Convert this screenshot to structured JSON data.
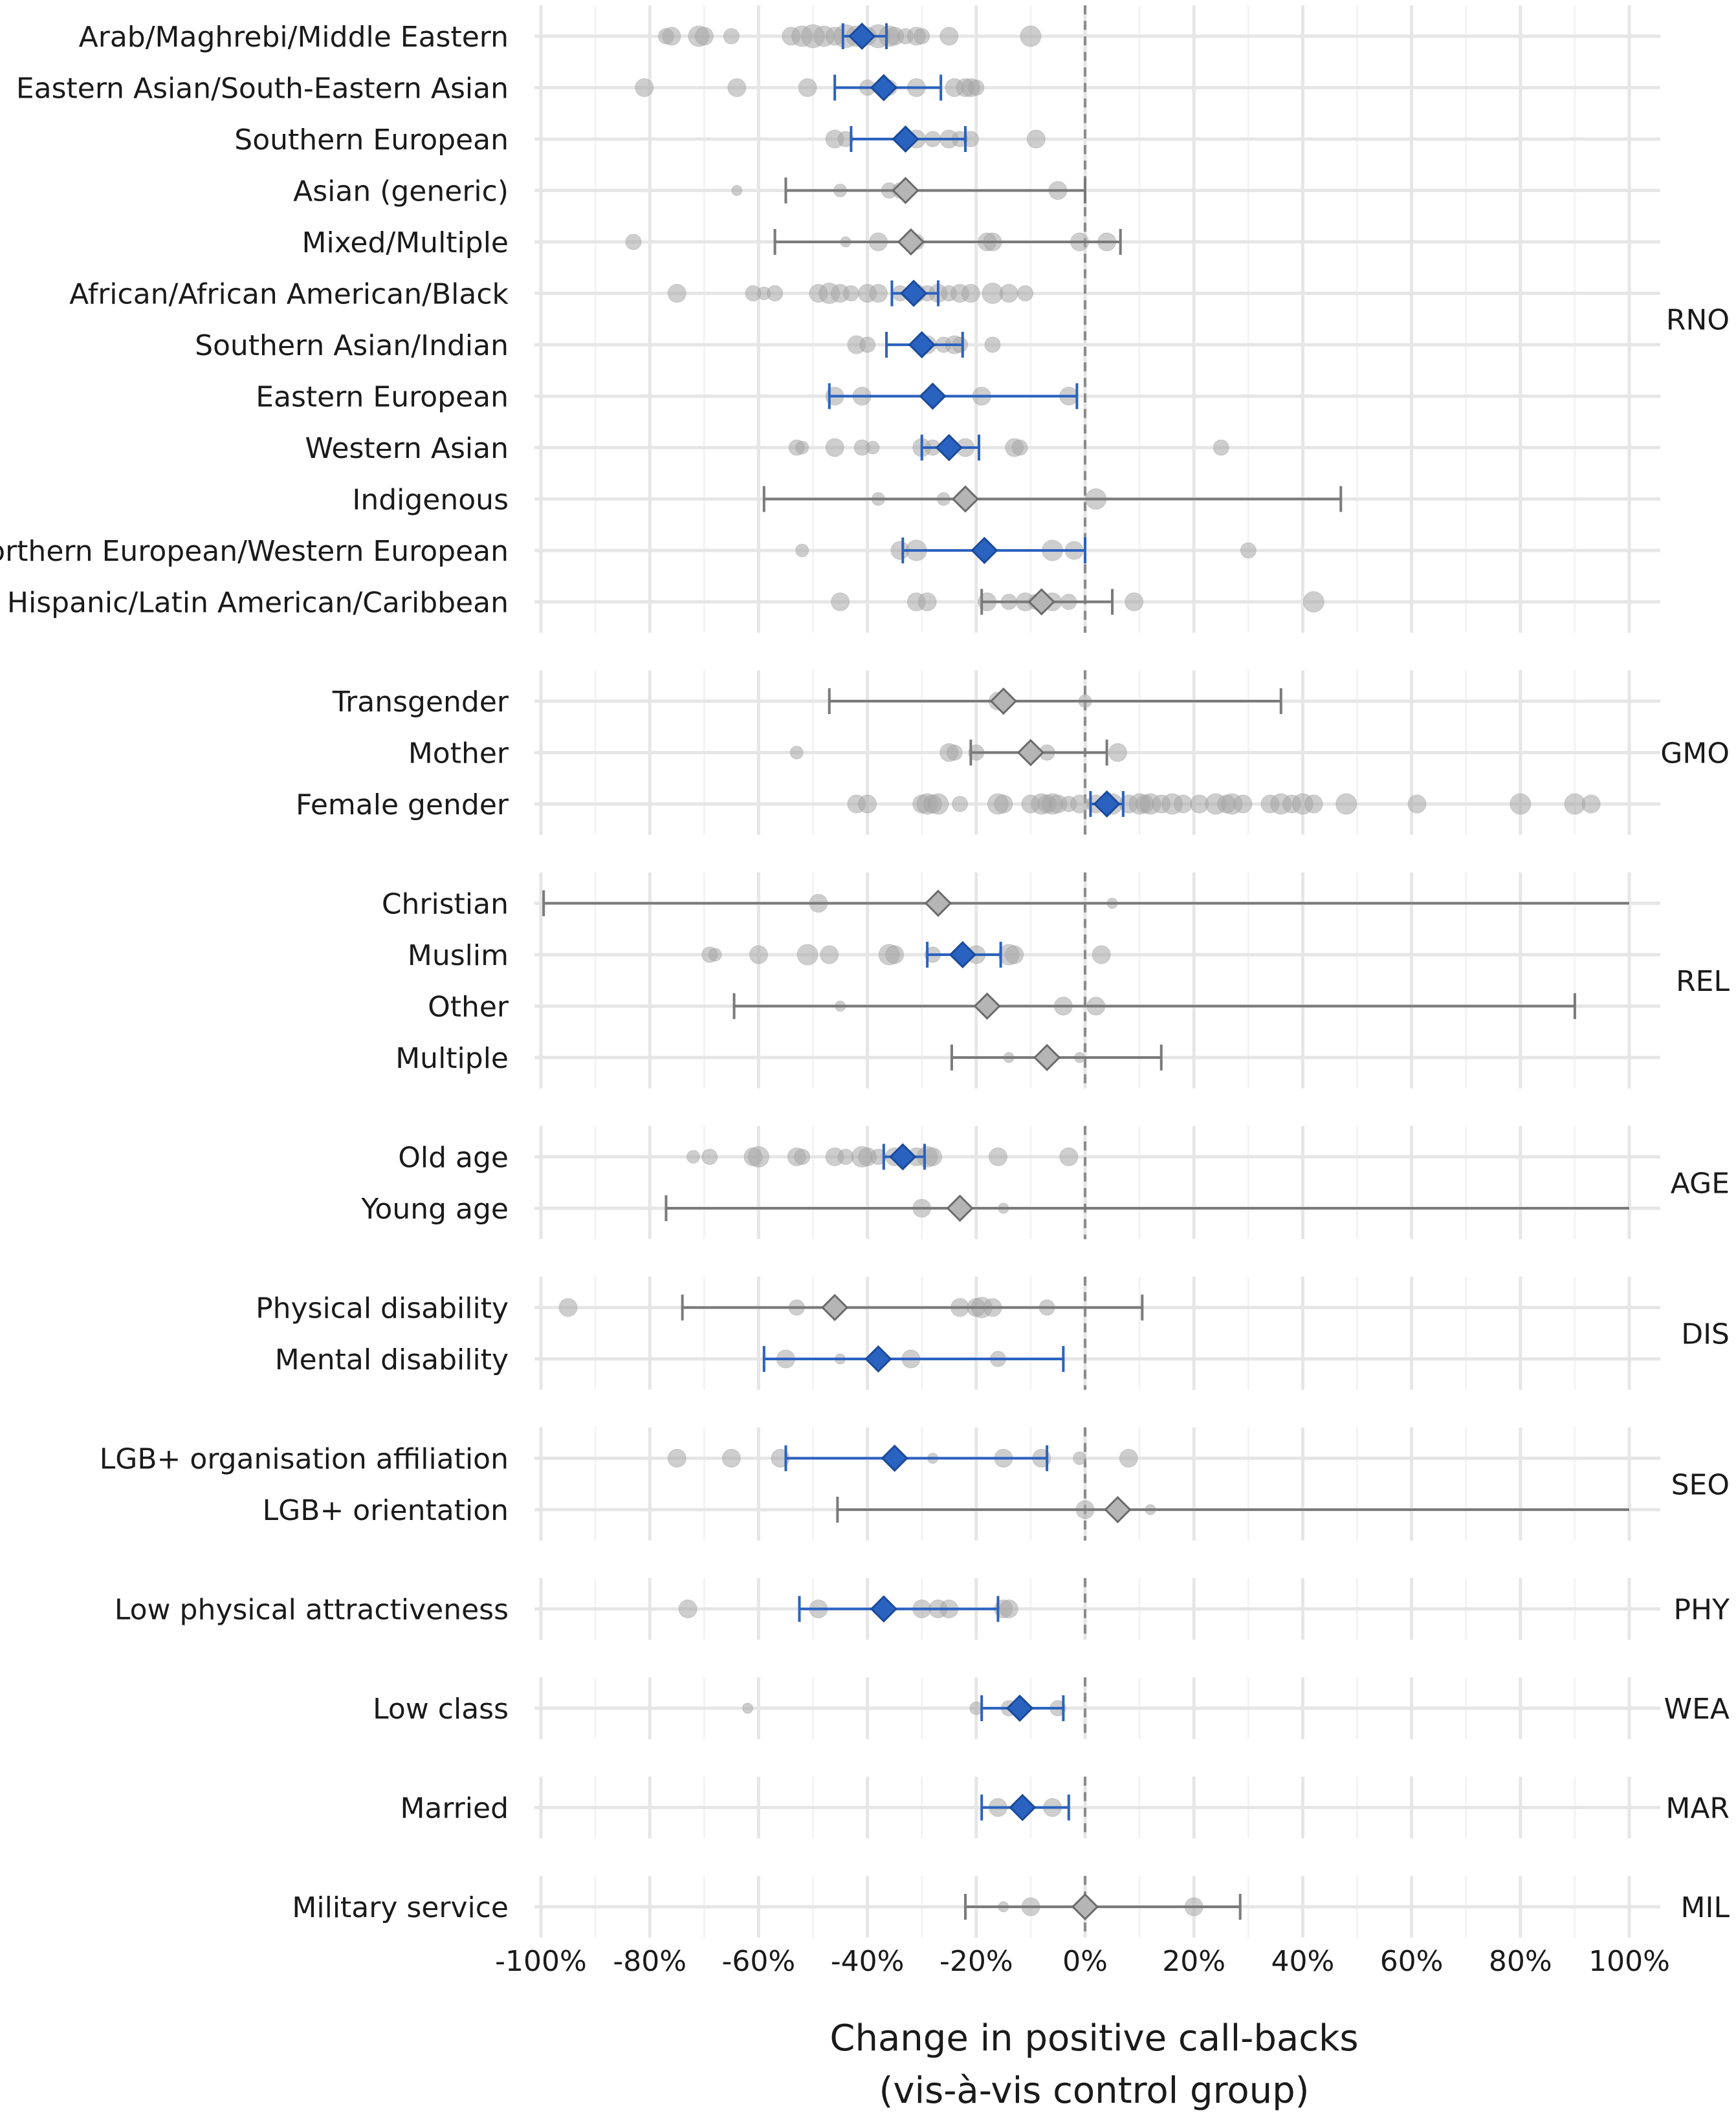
{
  "chart_data": {
    "type": "scatter",
    "title": "",
    "xlabel_lines": [
      "Change in positive call-backs",
      "(vis-à-vis control group)"
    ],
    "xlim": [
      -100,
      103
    ],
    "x_ticks": [
      -100,
      -80,
      -60,
      -40,
      -20,
      0,
      20,
      40,
      60,
      80,
      100
    ],
    "x_tick_labels": [
      "-100%",
      "-80%",
      "-60%",
      "-40%",
      "-20%",
      "0%",
      "20%",
      "40%",
      "60%",
      "80%",
      "100%"
    ],
    "reference_line": 0,
    "grid": true,
    "colors": {
      "significant": "#2a62c0",
      "not_significant": "#7a7a7a",
      "study_points": "#a6a6a6",
      "grid": "#e6e6e6",
      "reference": "#8c8c8c"
    },
    "groups": [
      {
        "label": "RNO",
        "rows": [
          {
            "label": "Arab/Maghrebi/Middle Eastern",
            "estimate": -41,
            "ci": [
              -44.5,
              -36.5
            ],
            "significant": true,
            "studies": [
              -77,
              -76,
              -71,
              -70,
              -65,
              -54,
              -52,
              -50,
              -48,
              -46,
              -44,
              -42,
              -40,
              -38,
              -36,
              -35,
              -33,
              -31,
              -30,
              -25,
              -10
            ],
            "study_sizes": [
              12,
              14,
              16,
              14,
              12,
              14,
              16,
              18,
              16,
              14,
              18,
              16,
              14,
              18,
              16,
              14,
              12,
              14,
              12,
              14,
              16
            ]
          },
          {
            "label": "Eastern Asian/South-Eastern Asian",
            "estimate": -37,
            "ci": [
              -46,
              -26.5
            ],
            "significant": true,
            "studies": [
              -81,
              -64,
              -51,
              -40,
              -36,
              -31,
              -24,
              -22,
              -21,
              -20
            ],
            "study_sizes": [
              14,
              14,
              14,
              12,
              12,
              14,
              14,
              14,
              14,
              12
            ]
          },
          {
            "label": "Southern European",
            "estimate": -33,
            "ci": [
              -43,
              -22
            ],
            "significant": true,
            "studies": [
              -46,
              -44,
              -31,
              -28,
              -25,
              -23,
              -21,
              -9
            ],
            "study_sizes": [
              14,
              12,
              14,
              12,
              14,
              12,
              12,
              14
            ]
          },
          {
            "label": "Asian (generic)",
            "estimate": -33,
            "ci": [
              -55,
              0
            ],
            "significant": false,
            "studies": [
              -64,
              -45,
              -36,
              -34,
              -5
            ],
            "study_sizes": [
              8,
              10,
              12,
              12,
              14
            ]
          },
          {
            "label": "Mixed/Multiple",
            "estimate": -32,
            "ci": [
              -57,
              6.5
            ],
            "significant": false,
            "studies": [
              -83,
              -44,
              -38,
              -31,
              -18,
              -17,
              -1,
              4
            ],
            "study_sizes": [
              12,
              8,
              14,
              12,
              14,
              14,
              14,
              14
            ]
          },
          {
            "label": "African/African American/Black",
            "estimate": -31.5,
            "ci": [
              -35.5,
              -27
            ],
            "significant": true,
            "studies": [
              -75,
              -61,
              -59,
              -57,
              -49,
              -47,
              -45,
              -43,
              -40,
              -38,
              -34,
              -31,
              -29,
              -27,
              -25,
              -23,
              -21,
              -17,
              -14,
              -11
            ],
            "study_sizes": [
              14,
              12,
              10,
              12,
              14,
              16,
              14,
              12,
              14,
              14,
              12,
              14,
              12,
              14,
              12,
              14,
              14,
              16,
              14,
              12
            ]
          },
          {
            "label": "Southern Asian/Indian",
            "estimate": -30,
            "ci": [
              -36.5,
              -22.5
            ],
            "significant": true,
            "studies": [
              -42,
              -40,
              -29,
              -26,
              -24,
              -23,
              -17
            ],
            "study_sizes": [
              14,
              12,
              14,
              12,
              14,
              12,
              12
            ]
          },
          {
            "label": "Eastern European",
            "estimate": -28,
            "ci": [
              -47,
              -1.5
            ],
            "significant": true,
            "studies": [
              -46,
              -41,
              -19,
              -3
            ],
            "study_sizes": [
              14,
              14,
              14,
              14
            ]
          },
          {
            "label": "Western Asian",
            "estimate": -25,
            "ci": [
              -30,
              -19.5
            ],
            "significant": true,
            "studies": [
              -53,
              -52,
              -46,
              -41,
              -39,
              -30,
              -28,
              -22,
              -13,
              -12,
              25
            ],
            "study_sizes": [
              12,
              10,
              14,
              12,
              10,
              14,
              12,
              14,
              14,
              12,
              12
            ]
          },
          {
            "label": "Indigenous",
            "estimate": -22,
            "ci": [
              -59,
              47
            ],
            "significant": false,
            "studies": [
              -38,
              -26,
              2
            ],
            "study_sizes": [
              10,
              10,
              16
            ]
          },
          {
            "label": "Northern European/Western European",
            "estimate": -18.5,
            "ci": [
              -33.5,
              0
            ],
            "significant": true,
            "studies": [
              -52,
              -34,
              -31,
              -6,
              -2,
              30
            ],
            "study_sizes": [
              10,
              14,
              16,
              16,
              14,
              12
            ]
          },
          {
            "label": "Hispanic/Latin American/Caribbean",
            "estimate": -8,
            "ci": [
              -19,
              5
            ],
            "significant": false,
            "studies": [
              -45,
              -31,
              -29,
              -18,
              -14,
              -11,
              -9,
              -6,
              -3,
              9,
              42
            ],
            "study_sizes": [
              14,
              14,
              14,
              14,
              12,
              14,
              12,
              14,
              12,
              14,
              16
            ]
          }
        ]
      },
      {
        "label": "GMO",
        "rows": [
          {
            "label": "Transgender",
            "estimate": -15,
            "ci": [
              -47,
              36
            ],
            "significant": false,
            "studies": [
              -16,
              0
            ],
            "study_sizes": [
              14,
              10
            ]
          },
          {
            "label": "Mother",
            "estimate": -10,
            "ci": [
              -21,
              4
            ],
            "significant": false,
            "studies": [
              -53,
              -25,
              -24,
              -20,
              -10,
              -7,
              6
            ],
            "study_sizes": [
              10,
              14,
              12,
              12,
              14,
              12,
              14
            ]
          },
          {
            "label": "Female gender",
            "estimate": 4,
            "ci": [
              1,
              7
            ],
            "significant": true,
            "studies": [
              -42,
              -40,
              -30,
              -29,
              -28,
              -27,
              -23,
              -16,
              -15,
              -10,
              -8,
              -7,
              -6,
              -5,
              -3,
              -1,
              2,
              5,
              8,
              10,
              11,
              12,
              14,
              16,
              18,
              21,
              24,
              26,
              27,
              29,
              34,
              36,
              38,
              40,
              42,
              48,
              61,
              80,
              90,
              93
            ],
            "study_sizes": [
              14,
              14,
              14,
              16,
              14,
              16,
              12,
              16,
              14,
              14,
              16,
              14,
              16,
              14,
              12,
              14,
              14,
              16,
              14,
              16,
              14,
              16,
              14,
              16,
              14,
              14,
              16,
              14,
              16,
              14,
              14,
              16,
              14,
              16,
              14,
              16,
              14,
              16,
              16,
              14
            ]
          }
        ]
      },
      {
        "label": "REL",
        "rows": [
          {
            "label": "Christian",
            "estimate": -27,
            "ci": [
              -99.5,
              103
            ],
            "significant": false,
            "studies": [
              -49,
              5
            ],
            "study_sizes": [
              14,
              8
            ]
          },
          {
            "label": "Muslim",
            "estimate": -22.5,
            "ci": [
              -29,
              -15.5
            ],
            "significant": true,
            "studies": [
              -69,
              -68,
              -60,
              -51,
              -47,
              -36,
              -35,
              -28,
              -20,
              -14,
              -13,
              3
            ],
            "study_sizes": [
              12,
              10,
              14,
              16,
              14,
              16,
              14,
              12,
              14,
              16,
              14,
              14
            ]
          },
          {
            "label": "Other",
            "estimate": -18,
            "ci": [
              -64.5,
              90
            ],
            "significant": false,
            "studies": [
              -45,
              -4,
              2
            ],
            "study_sizes": [
              8,
              14,
              14
            ]
          },
          {
            "label": "Multiple",
            "estimate": -7,
            "ci": [
              -24.5,
              14
            ],
            "significant": false,
            "studies": [
              -14,
              -1
            ],
            "study_sizes": [
              8,
              8
            ]
          }
        ]
      },
      {
        "label": "AGE",
        "rows": [
          {
            "label": "Old age",
            "estimate": -33.5,
            "ci": [
              -37,
              -29.5
            ],
            "significant": true,
            "studies": [
              -72,
              -69,
              -61,
              -60,
              -53,
              -52,
              -46,
              -44,
              -41,
              -40,
              -38,
              -35,
              -31,
              -29,
              -28,
              -16,
              -3
            ],
            "study_sizes": [
              10,
              12,
              14,
              16,
              14,
              12,
              14,
              12,
              16,
              14,
              12,
              14,
              14,
              16,
              14,
              14,
              14
            ]
          },
          {
            "label": "Young age",
            "estimate": -23,
            "ci": [
              -77,
              103
            ],
            "significant": false,
            "studies": [
              -30,
              -15
            ],
            "study_sizes": [
              14,
              8
            ]
          }
        ]
      },
      {
        "label": "DIS",
        "rows": [
          {
            "label": "Physical disability",
            "estimate": -46,
            "ci": [
              -74,
              10.5
            ],
            "significant": false,
            "studies": [
              -95,
              -53,
              -23,
              -20,
              -19,
              -17,
              -7
            ],
            "study_sizes": [
              14,
              12,
              14,
              14,
              16,
              14,
              12
            ]
          },
          {
            "label": "Mental disability",
            "estimate": -38,
            "ci": [
              -59,
              -4
            ],
            "significant": true,
            "studies": [
              -55,
              -45,
              -32,
              -16
            ],
            "study_sizes": [
              14,
              8,
              14,
              12
            ]
          }
        ]
      },
      {
        "label": "SEO",
        "rows": [
          {
            "label": "LGB+ organisation affiliation",
            "estimate": -35,
            "ci": [
              -55,
              -7
            ],
            "significant": true,
            "studies": [
              -75,
              -65,
              -56,
              -28,
              -15,
              -8,
              -1,
              8
            ],
            "study_sizes": [
              14,
              14,
              14,
              8,
              14,
              14,
              10,
              14
            ]
          },
          {
            "label": "LGB+ orientation",
            "estimate": 6,
            "ci": [
              -45.5,
              103
            ],
            "significant": false,
            "studies": [
              0,
              12
            ],
            "study_sizes": [
              14,
              8
            ]
          }
        ]
      },
      {
        "label": "PHY",
        "rows": [
          {
            "label": "Low physical attractiveness",
            "estimate": -37,
            "ci": [
              -52.5,
              -16
            ],
            "significant": true,
            "studies": [
              -73,
              -49,
              -30,
              -27,
              -25,
              -15,
              -14
            ],
            "study_sizes": [
              14,
              14,
              14,
              14,
              14,
              14,
              14
            ]
          }
        ]
      },
      {
        "label": "WEA",
        "rows": [
          {
            "label": "Low class",
            "estimate": -12,
            "ci": [
              -19,
              -4
            ],
            "significant": true,
            "studies": [
              -62,
              -20,
              -14,
              -5
            ],
            "study_sizes": [
              8,
              10,
              12,
              12
            ]
          }
        ]
      },
      {
        "label": "MAR",
        "rows": [
          {
            "label": "Married",
            "estimate": -11.5,
            "ci": [
              -19,
              -3
            ],
            "significant": true,
            "studies": [
              -16,
              -6
            ],
            "study_sizes": [
              14,
              14
            ]
          }
        ]
      },
      {
        "label": "MIL",
        "rows": [
          {
            "label": "Military service",
            "estimate": 0,
            "ci": [
              -22,
              28.5
            ],
            "significant": false,
            "studies": [
              -15,
              -10,
              0,
              20
            ],
            "study_sizes": [
              8,
              14,
              14,
              14
            ]
          }
        ]
      }
    ]
  }
}
